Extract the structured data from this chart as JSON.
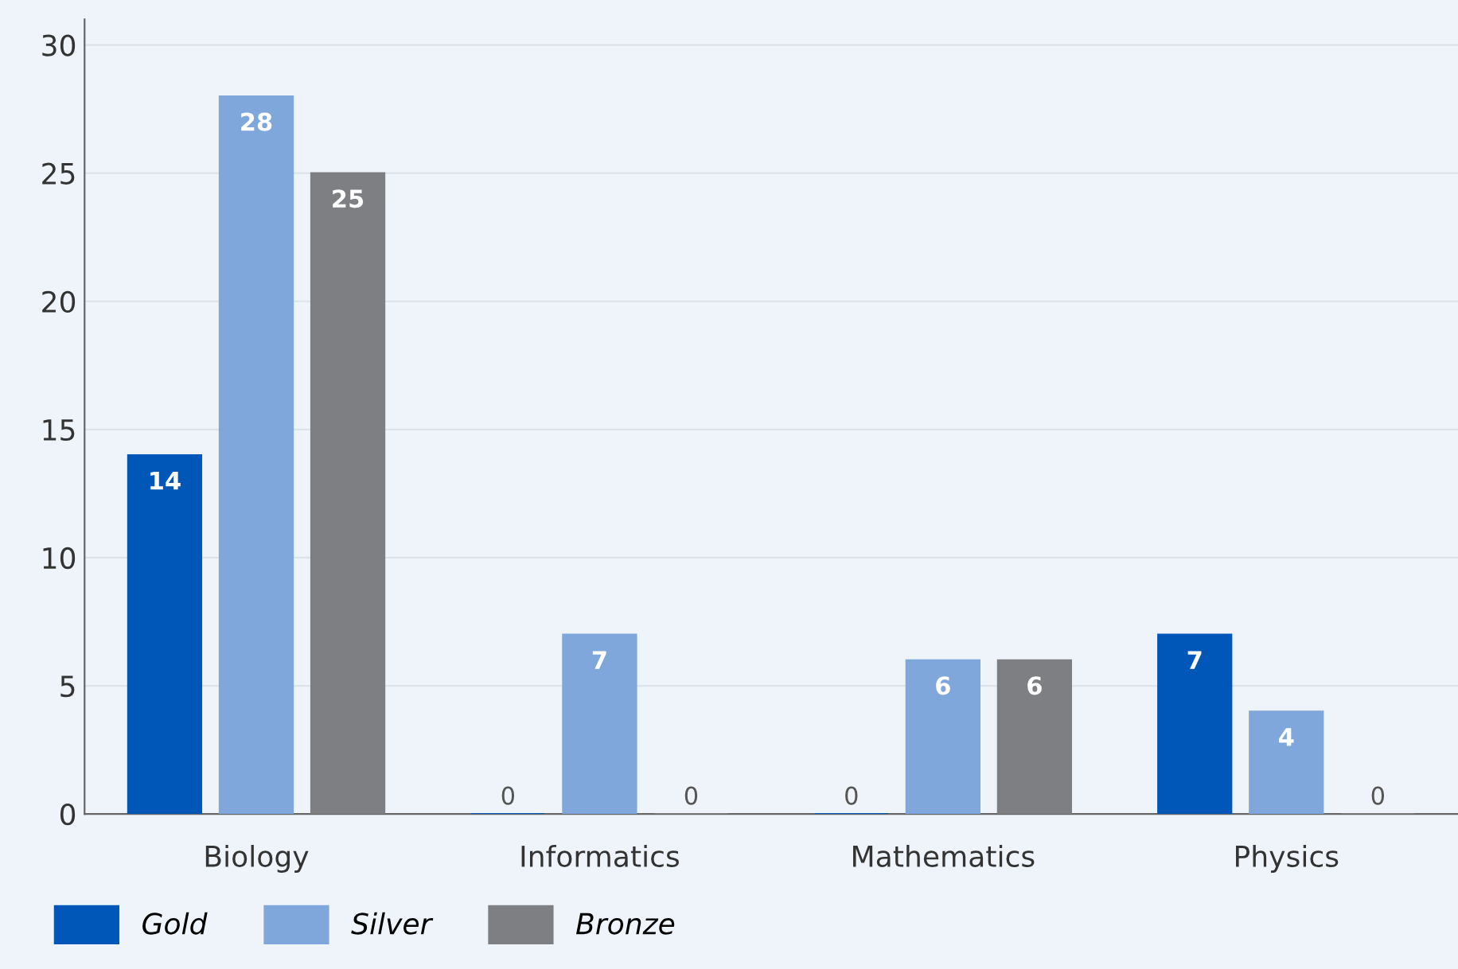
{
  "chart_data": {
    "type": "bar",
    "categories": [
      "Biology",
      "Informatics",
      "Mathematics",
      "Physics"
    ],
    "series": [
      {
        "name": "Gold",
        "color": "#0057b8",
        "values": [
          14,
          0,
          0,
          7
        ]
      },
      {
        "name": "Silver",
        "color": "#7fa7dc",
        "values": [
          28,
          7,
          6,
          4
        ]
      },
      {
        "name": "Bronze",
        "color": "#7d7f83",
        "values": [
          25,
          0,
          6,
          0
        ]
      }
    ],
    "ylim": [
      0,
      31
    ],
    "yticks": [
      0,
      5,
      10,
      15,
      20,
      25,
      30
    ],
    "grid": "y",
    "data_labels": true,
    "legend": "bottom left"
  }
}
